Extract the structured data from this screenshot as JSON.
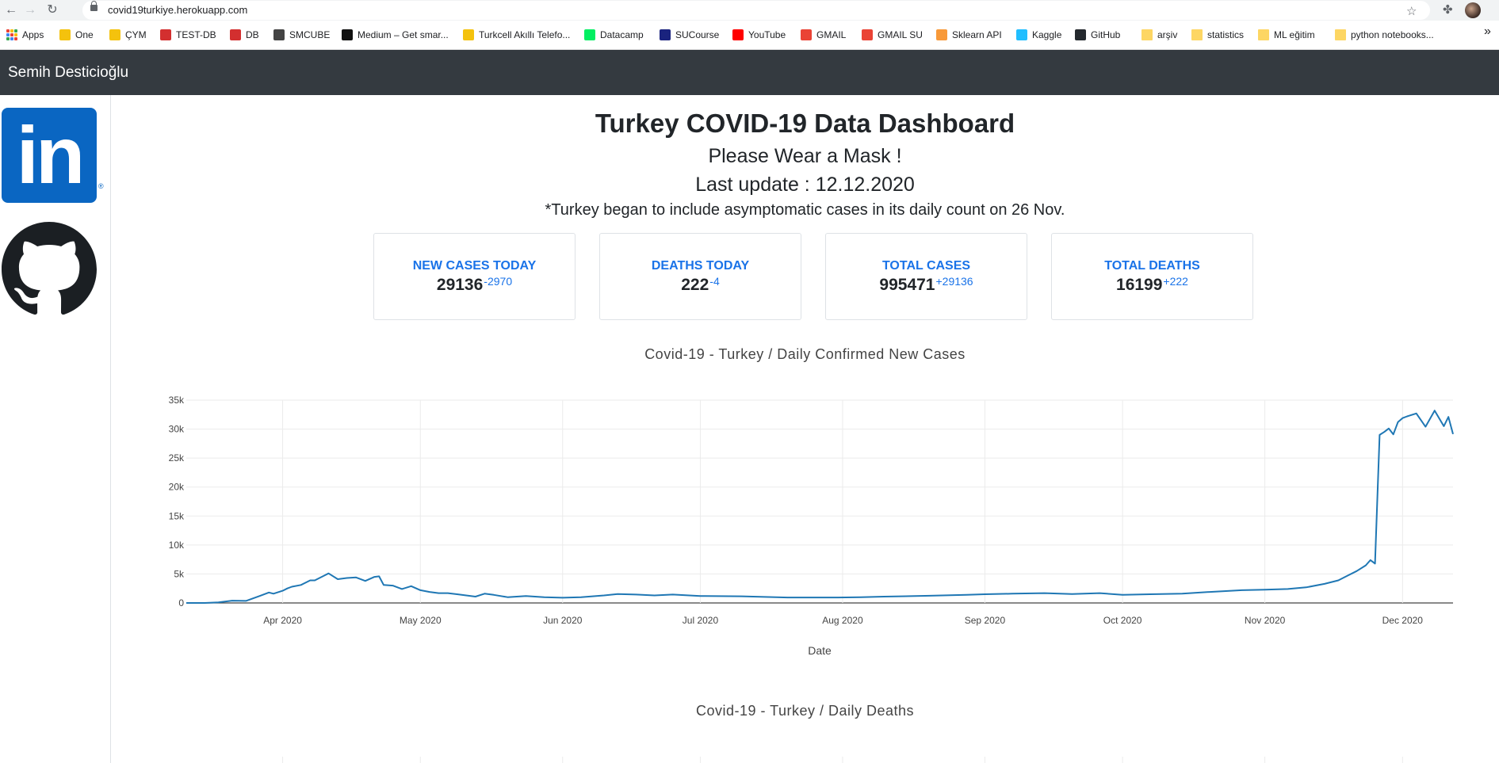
{
  "browser": {
    "url": "covid19turkiye.herokuapp.com",
    "bookmarks": [
      {
        "label": "Apps",
        "color": "#ea4335"
      },
      {
        "label": "One",
        "color": "#f4c20d"
      },
      {
        "label": "ÇYM",
        "color": "#f4c20d"
      },
      {
        "label": "TEST-DB",
        "color": "#d32f2f"
      },
      {
        "label": "DB",
        "color": "#d32f2f"
      },
      {
        "label": "SMCUBE",
        "color": "#444444"
      },
      {
        "label": "Medium – Get smar...",
        "color": "#111111"
      },
      {
        "label": "Turkcell Akıllı Telefo...",
        "color": "#f4c20d"
      },
      {
        "label": "Datacamp",
        "color": "#03ef62"
      },
      {
        "label": "SUCourse",
        "color": "#1a237e"
      },
      {
        "label": "YouTube",
        "color": "#ff0000"
      },
      {
        "label": "GMAIL",
        "color": "#ea4335"
      },
      {
        "label": "GMAIL SU",
        "color": "#ea4335"
      },
      {
        "label": "Sklearn API",
        "color": "#f89939"
      },
      {
        "label": "Kaggle",
        "color": "#20beff"
      },
      {
        "label": "GitHub",
        "color": "#24292e"
      },
      {
        "label": "arşiv",
        "color": "#fdd663"
      },
      {
        "label": "statistics",
        "color": "#fdd663"
      },
      {
        "label": "ML eğitim",
        "color": "#fdd663"
      },
      {
        "label": "python notebooks...",
        "color": "#fdd663"
      }
    ],
    "more_label": "»"
  },
  "navbar": {
    "brand": "Semih Desticioğlu"
  },
  "sidebar": {
    "linkedin_text": "in",
    "registered": "®"
  },
  "header": {
    "title": "Turkey COVID-19 Data Dashboard",
    "subtitle": "Please Wear a Mask !",
    "last_update": "Last update : 12.12.2020",
    "note": "*Turkey began to include asymptomatic cases in its daily count on 26 Nov."
  },
  "cards": [
    {
      "title": "NEW CASES TODAY",
      "value": "29136",
      "delta": "-2970"
    },
    {
      "title": "DEATHS TODAY",
      "value": "222",
      "delta": "-4"
    },
    {
      "title": "TOTAL CASES",
      "value": "995471",
      "delta": "+29136"
    },
    {
      "title": "TOTAL DEATHS",
      "value": "16199",
      "delta": "+222"
    }
  ],
  "charts": {
    "cases_title": "Covid-19 - Turkey / Daily Confirmed New Cases",
    "deaths_title": "Covid-19 - Turkey / Daily Deaths"
  },
  "chart_data": {
    "type": "line",
    "title": "Covid-19 - Turkey / Daily Confirmed New Cases",
    "xlabel": "Date",
    "ylabel": "",
    "line_color": "#1f77b4",
    "grid": true,
    "xlim": [
      "2020-03-11",
      "2020-12-12"
    ],
    "ylim": [
      0,
      35000
    ],
    "x_ticks": [
      {
        "date": "2020-04-01",
        "label": "Apr 2020"
      },
      {
        "date": "2020-05-01",
        "label": "May 2020"
      },
      {
        "date": "2020-06-01",
        "label": "Jun 2020"
      },
      {
        "date": "2020-07-01",
        "label": "Jul 2020"
      },
      {
        "date": "2020-08-01",
        "label": "Aug 2020"
      },
      {
        "date": "2020-09-01",
        "label": "Sep 2020"
      },
      {
        "date": "2020-10-01",
        "label": "Oct 2020"
      },
      {
        "date": "2020-11-01",
        "label": "Nov 2020"
      },
      {
        "date": "2020-12-01",
        "label": "Dec 2020"
      }
    ],
    "y_ticks": [
      {
        "value": 0,
        "label": "0"
      },
      {
        "value": 5000,
        "label": "5k"
      },
      {
        "value": 10000,
        "label": "10k"
      },
      {
        "value": 15000,
        "label": "15k"
      },
      {
        "value": 20000,
        "label": "20k"
      },
      {
        "value": 25000,
        "label": "25k"
      },
      {
        "value": 30000,
        "label": "30k"
      },
      {
        "value": 35000,
        "label": "35k"
      }
    ],
    "series": [
      {
        "points": [
          [
            "2020-03-11",
            1
          ],
          [
            "2020-03-15",
            5
          ],
          [
            "2020-03-18",
            100
          ],
          [
            "2020-03-21",
            400
          ],
          [
            "2020-03-24",
            350
          ],
          [
            "2020-03-27",
            1200
          ],
          [
            "2020-03-29",
            1800
          ],
          [
            "2020-03-30",
            1600
          ],
          [
            "2020-04-01",
            2100
          ],
          [
            "2020-04-02",
            2500
          ],
          [
            "2020-04-03",
            2800
          ],
          [
            "2020-04-05",
            3100
          ],
          [
            "2020-04-07",
            3900
          ],
          [
            "2020-04-08",
            3900
          ],
          [
            "2020-04-10",
            4700
          ],
          [
            "2020-04-11",
            5100
          ],
          [
            "2020-04-13",
            4100
          ],
          [
            "2020-04-15",
            4300
          ],
          [
            "2020-04-17",
            4400
          ],
          [
            "2020-04-19",
            3800
          ],
          [
            "2020-04-21",
            4500
          ],
          [
            "2020-04-22",
            4600
          ],
          [
            "2020-04-23",
            3100
          ],
          [
            "2020-04-25",
            3000
          ],
          [
            "2020-04-27",
            2400
          ],
          [
            "2020-04-29",
            2900
          ],
          [
            "2020-05-01",
            2200
          ],
          [
            "2020-05-03",
            1900
          ],
          [
            "2020-05-05",
            1700
          ],
          [
            "2020-05-07",
            1700
          ],
          [
            "2020-05-09",
            1500
          ],
          [
            "2020-05-11",
            1300
          ],
          [
            "2020-05-13",
            1100
          ],
          [
            "2020-05-15",
            1600
          ],
          [
            "2020-05-17",
            1400
          ],
          [
            "2020-05-20",
            1000
          ],
          [
            "2020-05-24",
            1200
          ],
          [
            "2020-05-28",
            1000
          ],
          [
            "2020-06-01",
            900
          ],
          [
            "2020-06-05",
            1000
          ],
          [
            "2020-06-10",
            1300
          ],
          [
            "2020-06-13",
            1550
          ],
          [
            "2020-06-17",
            1450
          ],
          [
            "2020-06-21",
            1300
          ],
          [
            "2020-06-25",
            1450
          ],
          [
            "2020-07-01",
            1200
          ],
          [
            "2020-07-10",
            1150
          ],
          [
            "2020-07-20",
            950
          ],
          [
            "2020-07-31",
            950
          ],
          [
            "2020-08-05",
            1000
          ],
          [
            "2020-08-10",
            1100
          ],
          [
            "2020-08-20",
            1250
          ],
          [
            "2020-08-28",
            1400
          ],
          [
            "2020-09-01",
            1500
          ],
          [
            "2020-09-07",
            1600
          ],
          [
            "2020-09-14",
            1700
          ],
          [
            "2020-09-20",
            1550
          ],
          [
            "2020-09-26",
            1700
          ],
          [
            "2020-10-01",
            1400
          ],
          [
            "2020-10-07",
            1500
          ],
          [
            "2020-10-14",
            1600
          ],
          [
            "2020-10-20",
            1900
          ],
          [
            "2020-10-27",
            2200
          ],
          [
            "2020-11-01",
            2300
          ],
          [
            "2020-11-06",
            2400
          ],
          [
            "2020-11-10",
            2700
          ],
          [
            "2020-11-14",
            3300
          ],
          [
            "2020-11-17",
            3900
          ],
          [
            "2020-11-19",
            4700
          ],
          [
            "2020-11-21",
            5500
          ],
          [
            "2020-11-23",
            6500
          ],
          [
            "2020-11-24",
            7400
          ],
          [
            "2020-11-25",
            6800
          ],
          [
            "2020-11-26",
            29000
          ],
          [
            "2020-11-27",
            29500
          ],
          [
            "2020-11-28",
            30100
          ],
          [
            "2020-11-29",
            29100
          ],
          [
            "2020-11-30",
            31200
          ],
          [
            "2020-12-01",
            31900
          ],
          [
            "2020-12-02",
            32200
          ],
          [
            "2020-12-04",
            32700
          ],
          [
            "2020-12-06",
            30400
          ],
          [
            "2020-12-08",
            33200
          ],
          [
            "2020-12-10",
            30500
          ],
          [
            "2020-12-11",
            32100
          ],
          [
            "2020-12-12",
            29136
          ]
        ]
      }
    ]
  }
}
